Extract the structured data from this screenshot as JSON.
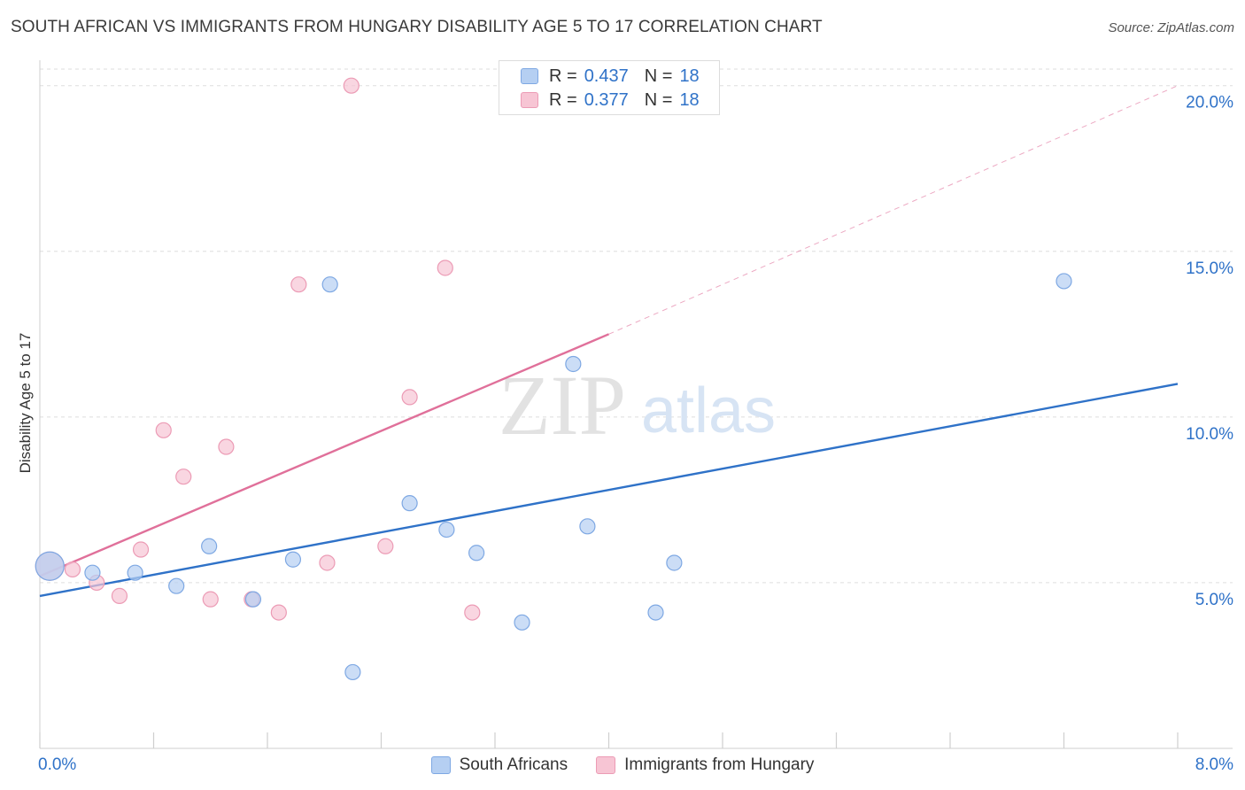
{
  "title": "SOUTH AFRICAN VS IMMIGRANTS FROM HUNGARY DISABILITY AGE 5 TO 17 CORRELATION CHART",
  "source": "Source: ZipAtlas.com",
  "watermark": {
    "zip": "ZIP",
    "atlas": "atlas"
  },
  "colors": {
    "blue_fill": "#b5cff2",
    "blue_stroke": "#7ea8e3",
    "blue_line": "#2f72c8",
    "pink_fill": "#f7c5d4",
    "pink_stroke": "#ec9bb5",
    "pink_line": "#e0709a",
    "value_text": "#2f72c8",
    "grid": "#dedede"
  },
  "legend": {
    "rows": [
      {
        "r_label": "R =",
        "r_value": "0.437",
        "n_label": "N =",
        "n_value": "18"
      },
      {
        "r_label": "R =",
        "r_value": "0.377",
        "n_label": "N =",
        "n_value": "18"
      }
    ]
  },
  "chart_data": {
    "type": "scatter",
    "xlabel": "",
    "ylabel": "Disability Age 5 to 17",
    "xlim": [
      0,
      8
    ],
    "ylim": [
      0,
      20.5
    ],
    "x_tick_labels": [
      "0.0%",
      "8.0%"
    ],
    "y_ticks": [
      5,
      10,
      15,
      20
    ],
    "y_tick_labels": [
      "5.0%",
      "10.0%",
      "15.0%",
      "20.0%"
    ],
    "grid": true,
    "legend_position": "top-center",
    "series": [
      {
        "name": "South Africans",
        "color": "#2f72c8",
        "points": [
          {
            "x": 0.07,
            "y": 5.5,
            "big": true
          },
          {
            "x": 0.37,
            "y": 5.3
          },
          {
            "x": 0.67,
            "y": 5.3
          },
          {
            "x": 0.96,
            "y": 4.9
          },
          {
            "x": 1.19,
            "y": 6.1
          },
          {
            "x": 1.5,
            "y": 4.5
          },
          {
            "x": 1.78,
            "y": 5.7
          },
          {
            "x": 2.04,
            "y": 14.0
          },
          {
            "x": 2.2,
            "y": 2.3
          },
          {
            "x": 2.6,
            "y": 7.4
          },
          {
            "x": 2.86,
            "y": 6.6
          },
          {
            "x": 3.07,
            "y": 5.9
          },
          {
            "x": 3.39,
            "y": 3.8
          },
          {
            "x": 3.75,
            "y": 11.6
          },
          {
            "x": 3.85,
            "y": 6.7
          },
          {
            "x": 4.33,
            "y": 4.1
          },
          {
            "x": 4.46,
            "y": 5.6
          },
          {
            "x": 7.2,
            "y": 14.1
          }
        ],
        "trend": {
          "x": [
            0,
            8
          ],
          "y": [
            4.6,
            11.0
          ]
        }
      },
      {
        "name": "Immigrants from Hungary",
        "color": "#e0709a",
        "points": [
          {
            "x": 0.07,
            "y": 5.5,
            "big": true
          },
          {
            "x": 0.23,
            "y": 5.4
          },
          {
            "x": 0.4,
            "y": 5.0
          },
          {
            "x": 0.56,
            "y": 4.6
          },
          {
            "x": 0.71,
            "y": 6.0
          },
          {
            "x": 0.87,
            "y": 9.6
          },
          {
            "x": 1.01,
            "y": 8.2
          },
          {
            "x": 1.2,
            "y": 4.5
          },
          {
            "x": 1.31,
            "y": 9.1
          },
          {
            "x": 1.49,
            "y": 4.5
          },
          {
            "x": 1.68,
            "y": 4.1
          },
          {
            "x": 1.82,
            "y": 14.0
          },
          {
            "x": 2.02,
            "y": 5.6
          },
          {
            "x": 2.19,
            "y": 20.0
          },
          {
            "x": 2.43,
            "y": 6.1
          },
          {
            "x": 2.6,
            "y": 10.6
          },
          {
            "x": 2.85,
            "y": 14.5
          },
          {
            "x": 3.04,
            "y": 4.1
          }
        ],
        "trend": {
          "x": [
            0,
            4
          ],
          "y": [
            5.2,
            12.5
          ]
        },
        "trend_extension": {
          "x": [
            4,
            8
          ],
          "y": [
            12.5,
            20.0
          ]
        }
      }
    ]
  }
}
